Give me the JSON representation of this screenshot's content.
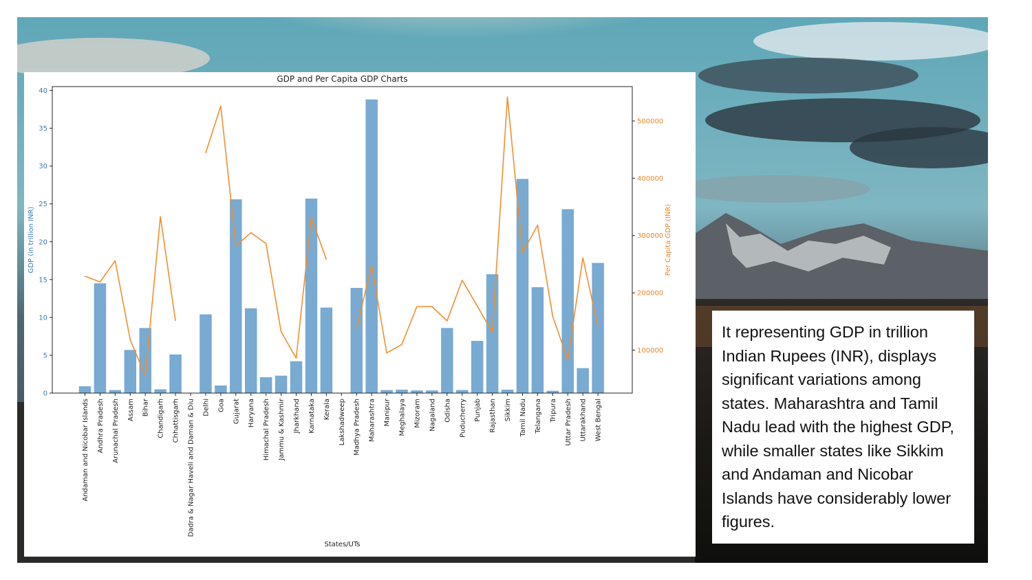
{
  "colors": {
    "bar": "#78aad2",
    "line": "#f28e2b",
    "left_axis": "#3a78b0",
    "right_axis": "#e8862a",
    "text_box_bg": "#ffffff"
  },
  "description": {
    "text": "It representing GDP in trillion Indian Rupees (INR), displays significant variations among states. Maharashtra and Tamil Nadu lead with the highest GDP, while smaller states like Sikkim and Andaman and Nicobar Islands have considerably lower figures."
  },
  "chart_data": {
    "type": "bar",
    "title": "GDP and Per Capita GDP Charts",
    "xlabel": "States/UTs",
    "ylabel": "GDP (in trillion INR)",
    "y2label": "Per Capita GDP (INR)",
    "ylim": [
      0,
      40.5
    ],
    "y2lim": [
      25000,
      560000
    ],
    "yticks": [
      0,
      5,
      10,
      15,
      20,
      25,
      30,
      35,
      40
    ],
    "y2ticks": [
      100000,
      200000,
      300000,
      400000,
      500000
    ],
    "categories": [
      "Andaman and Nicobar Islands",
      "Andhra Pradesh",
      "Arunachal Pradesh",
      "Assam",
      "Bihar",
      "Chandigarh",
      "Chhattisgarh",
      "Dadra & Nagar Haveli and Daman & Diu",
      "Delhi",
      "Goa",
      "Gujarat",
      "Haryana",
      "Himachal Pradesh",
      "Jammu & Kashmir",
      "Jharkhand",
      "Karnataka",
      "Kerala",
      "Lakshadweep",
      "Madhya Pradesh",
      "Maharashtra",
      "Manipur",
      "Meghalaya",
      "Mizoram",
      "Nagaland",
      "Odisha",
      "Puducherry",
      "Punjab",
      "Rajasthan",
      "Sikkim",
      "Tamil Nadu",
      "Telangana",
      "Tripura",
      "Uttar Pradesh",
      "Uttarakhand",
      "West Bengal"
    ],
    "series": [
      {
        "name": "GDP (in trillion INR)",
        "type": "bar",
        "axis": "left",
        "values": [
          0.9,
          14.5,
          0.4,
          5.7,
          8.6,
          0.5,
          5.1,
          0,
          10.4,
          1.0,
          25.6,
          11.2,
          2.1,
          2.3,
          4.2,
          25.7,
          11.3,
          0,
          13.9,
          38.8,
          0.4,
          0.45,
          0.35,
          0.35,
          8.6,
          0.4,
          6.9,
          15.7,
          0.45,
          28.3,
          14.0,
          0.3,
          24.3,
          3.3,
          17.2
        ]
      },
      {
        "name": "Per Capita GDP (INR)",
        "type": "line",
        "axis": "right",
        "values": [
          229000,
          219000,
          256000,
          118000,
          55000,
          333000,
          151000,
          null,
          444000,
          526000,
          282000,
          305000,
          286000,
          132000,
          86000,
          332000,
          258000,
          null,
          138000,
          248000,
          95000,
          110000,
          176000,
          176000,
          151000,
          222000,
          177000,
          131000,
          542000,
          270000,
          318000,
          159000,
          83000,
          261000,
          141000
        ]
      }
    ]
  }
}
